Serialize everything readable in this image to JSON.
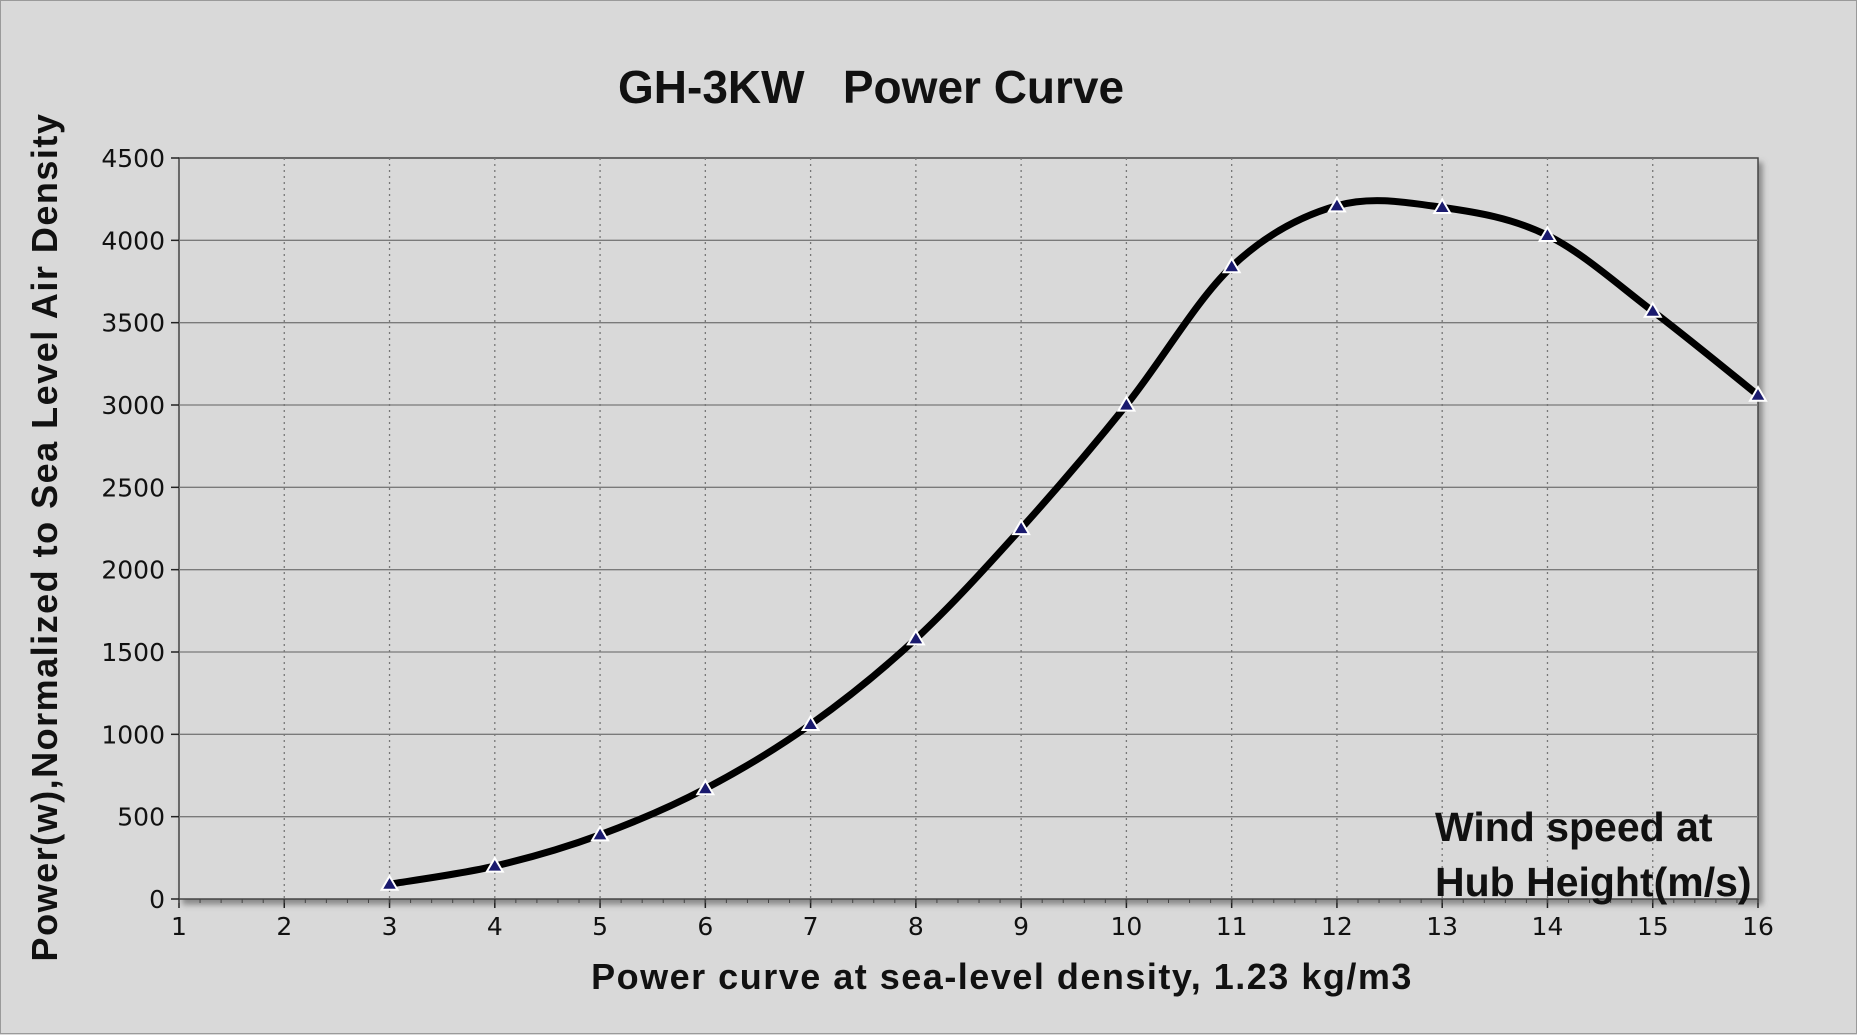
{
  "chart_data": {
    "type": "line",
    "title": "GH-3KW   Power Curve",
    "xlabel": "Power curve at sea-level density, 1.23 kg/m3",
    "ylabel": "Power(w),Normalized to Sea Level Air Density",
    "annotation": [
      "Wind speed at",
      "Hub Height(m/s)"
    ],
    "xlim": [
      1,
      16
    ],
    "ylim": [
      0,
      4500
    ],
    "x_ticks": [
      "1",
      "2",
      "3",
      "4",
      "5",
      "6",
      "7",
      "8",
      "9",
      "10",
      "11",
      "12",
      "13",
      "14",
      "15",
      "16"
    ],
    "y_ticks": [
      "0",
      "500",
      "1000",
      "1500",
      "2000",
      "2500",
      "3000",
      "3500",
      "4000",
      "4500"
    ],
    "grid": {
      "horizontal": "solid",
      "vertical": "dotted"
    },
    "line_color": "#000000",
    "marker_color": "#1a1a6e",
    "series": [
      {
        "x": [
          3,
          4,
          5,
          6,
          7,
          8,
          9,
          10,
          11,
          12,
          13,
          14,
          15,
          16
        ],
        "values": [
          90,
          200,
          390,
          670,
          1060,
          1580,
          2250,
          3000,
          3840,
          4210,
          4200,
          4030,
          3570,
          3060
        ]
      }
    ]
  }
}
